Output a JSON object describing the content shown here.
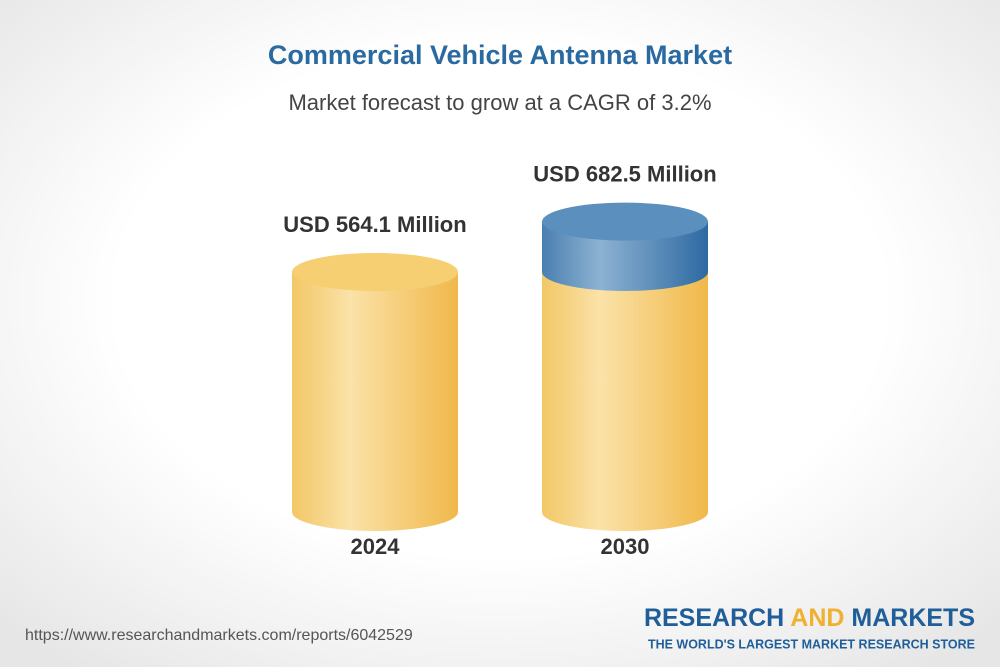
{
  "chart_data": {
    "type": "cylinder",
    "title": "Commercial Vehicle Antenna Market",
    "subtitle": "Market forecast to grow at a CAGR of 3.2%",
    "categories": [
      "2024",
      "2030"
    ],
    "values": [
      564.1,
      682.5
    ],
    "value_labels": [
      "USD 564.1 Million",
      "USD 682.5 Million"
    ],
    "color": "#f5c75e",
    "growth_color": "#4f86b8"
  },
  "footer": {
    "url": "https://www.researchandmarkets.com/reports/6042529",
    "logo": {
      "research": "RESEARCH",
      "and": "AND",
      "markets": "MARKETS",
      "tagline": "THE WORLD'S LARGEST MARKET RESEARCH STORE"
    }
  }
}
